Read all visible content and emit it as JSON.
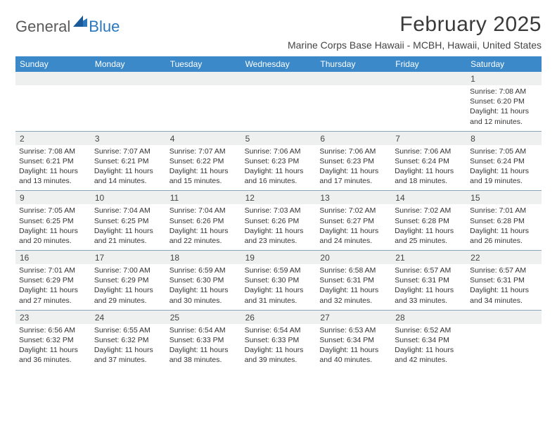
{
  "logo": {
    "text1": "General",
    "text2": "Blue"
  },
  "header": {
    "month_title": "February 2025",
    "location": "Marine Corps Base Hawaii - MCBH, Hawaii, United States"
  },
  "colors": {
    "header_bg": "#3b89c9",
    "rule": "#8aa5b8",
    "num_band": "#eef0f0",
    "logo_gray": "#5a5a5a",
    "logo_blue": "#2a77bd"
  },
  "day_names": [
    "Sunday",
    "Monday",
    "Tuesday",
    "Wednesday",
    "Thursday",
    "Friday",
    "Saturday"
  ],
  "weeks": [
    {
      "numbers": [
        "",
        "",
        "",
        "",
        "",
        "",
        "1"
      ],
      "cells": [
        null,
        null,
        null,
        null,
        null,
        null,
        {
          "sunrise": "7:08 AM",
          "sunset": "6:20 PM",
          "daylight": "11 hours and 12 minutes."
        }
      ]
    },
    {
      "numbers": [
        "2",
        "3",
        "4",
        "5",
        "6",
        "7",
        "8"
      ],
      "cells": [
        {
          "sunrise": "7:08 AM",
          "sunset": "6:21 PM",
          "daylight": "11 hours and 13 minutes."
        },
        {
          "sunrise": "7:07 AM",
          "sunset": "6:21 PM",
          "daylight": "11 hours and 14 minutes."
        },
        {
          "sunrise": "7:07 AM",
          "sunset": "6:22 PM",
          "daylight": "11 hours and 15 minutes."
        },
        {
          "sunrise": "7:06 AM",
          "sunset": "6:23 PM",
          "daylight": "11 hours and 16 minutes."
        },
        {
          "sunrise": "7:06 AM",
          "sunset": "6:23 PM",
          "daylight": "11 hours and 17 minutes."
        },
        {
          "sunrise": "7:06 AM",
          "sunset": "6:24 PM",
          "daylight": "11 hours and 18 minutes."
        },
        {
          "sunrise": "7:05 AM",
          "sunset": "6:24 PM",
          "daylight": "11 hours and 19 minutes."
        }
      ]
    },
    {
      "numbers": [
        "9",
        "10",
        "11",
        "12",
        "13",
        "14",
        "15"
      ],
      "cells": [
        {
          "sunrise": "7:05 AM",
          "sunset": "6:25 PM",
          "daylight": "11 hours and 20 minutes."
        },
        {
          "sunrise": "7:04 AM",
          "sunset": "6:25 PM",
          "daylight": "11 hours and 21 minutes."
        },
        {
          "sunrise": "7:04 AM",
          "sunset": "6:26 PM",
          "daylight": "11 hours and 22 minutes."
        },
        {
          "sunrise": "7:03 AM",
          "sunset": "6:26 PM",
          "daylight": "11 hours and 23 minutes."
        },
        {
          "sunrise": "7:02 AM",
          "sunset": "6:27 PM",
          "daylight": "11 hours and 24 minutes."
        },
        {
          "sunrise": "7:02 AM",
          "sunset": "6:28 PM",
          "daylight": "11 hours and 25 minutes."
        },
        {
          "sunrise": "7:01 AM",
          "sunset": "6:28 PM",
          "daylight": "11 hours and 26 minutes."
        }
      ]
    },
    {
      "numbers": [
        "16",
        "17",
        "18",
        "19",
        "20",
        "21",
        "22"
      ],
      "cells": [
        {
          "sunrise": "7:01 AM",
          "sunset": "6:29 PM",
          "daylight": "11 hours and 27 minutes."
        },
        {
          "sunrise": "7:00 AM",
          "sunset": "6:29 PM",
          "daylight": "11 hours and 29 minutes."
        },
        {
          "sunrise": "6:59 AM",
          "sunset": "6:30 PM",
          "daylight": "11 hours and 30 minutes."
        },
        {
          "sunrise": "6:59 AM",
          "sunset": "6:30 PM",
          "daylight": "11 hours and 31 minutes."
        },
        {
          "sunrise": "6:58 AM",
          "sunset": "6:31 PM",
          "daylight": "11 hours and 32 minutes."
        },
        {
          "sunrise": "6:57 AM",
          "sunset": "6:31 PM",
          "daylight": "11 hours and 33 minutes."
        },
        {
          "sunrise": "6:57 AM",
          "sunset": "6:31 PM",
          "daylight": "11 hours and 34 minutes."
        }
      ]
    },
    {
      "numbers": [
        "23",
        "24",
        "25",
        "26",
        "27",
        "28",
        ""
      ],
      "cells": [
        {
          "sunrise": "6:56 AM",
          "sunset": "6:32 PM",
          "daylight": "11 hours and 36 minutes."
        },
        {
          "sunrise": "6:55 AM",
          "sunset": "6:32 PM",
          "daylight": "11 hours and 37 minutes."
        },
        {
          "sunrise": "6:54 AM",
          "sunset": "6:33 PM",
          "daylight": "11 hours and 38 minutes."
        },
        {
          "sunrise": "6:54 AM",
          "sunset": "6:33 PM",
          "daylight": "11 hours and 39 minutes."
        },
        {
          "sunrise": "6:53 AM",
          "sunset": "6:34 PM",
          "daylight": "11 hours and 40 minutes."
        },
        {
          "sunrise": "6:52 AM",
          "sunset": "6:34 PM",
          "daylight": "11 hours and 42 minutes."
        },
        null
      ]
    }
  ],
  "labels": {
    "sunrise": "Sunrise:",
    "sunset": "Sunset:",
    "daylight": "Daylight:"
  }
}
